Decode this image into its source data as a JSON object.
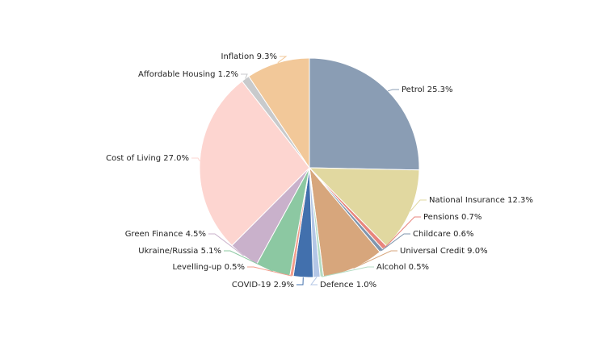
{
  "chart_data": {
    "type": "pie",
    "title": "",
    "start_angle_deg": 0,
    "direction": "clockwise",
    "slices": [
      {
        "label": "Petrol",
        "value": 25.3,
        "display": "Petrol 25.3%",
        "color": "#8a9db4"
      },
      {
        "label": "National Insurance",
        "value": 12.3,
        "display": "National Insurance 12.3%",
        "color": "#e1d8a0"
      },
      {
        "label": "Pensions",
        "value": 0.7,
        "display": "Pensions 0.7%",
        "color": "#e8857d"
      },
      {
        "label": "Childcare",
        "value": 0.6,
        "display": "Childcare 0.6%",
        "color": "#7f95ad"
      },
      {
        "label": "Universal Credit",
        "value": 9.0,
        "display": "Universal Credit 9.0%",
        "color": "#d7a67c"
      },
      {
        "label": "Alcohol",
        "value": 0.5,
        "display": "Alcohol 0.5%",
        "color": "#b5dcc4"
      },
      {
        "label": "Defence",
        "value": 1.0,
        "display": "Defence 1.0%",
        "color": "#b3c6e6"
      },
      {
        "label": "COVID-19",
        "value": 2.9,
        "display": "COVID-19 2.9%",
        "color": "#4270ad"
      },
      {
        "label": "Levelling-up",
        "value": 0.5,
        "display": "Levelling-up 0.5%",
        "color": "#f29c8a"
      },
      {
        "label": "Ukraine/Russia",
        "value": 5.1,
        "display": "Ukraine/Russia 5.1%",
        "color": "#8cc8a2"
      },
      {
        "label": "Green Finance",
        "value": 4.5,
        "display": "Green Finance 4.5%",
        "color": "#c9b1cb"
      },
      {
        "label": "Cost of Living",
        "value": 27.0,
        "display": "Cost of Living 27.0%",
        "color": "#fdd5d0"
      },
      {
        "label": "Affordable Housing",
        "value": 1.2,
        "display": "Affordable Housing 1.2%",
        "color": "#c8cacc"
      },
      {
        "label": "Inflation",
        "value": 9.3,
        "display": "Inflation 9.3%",
        "color": "#f2c899"
      }
    ]
  }
}
